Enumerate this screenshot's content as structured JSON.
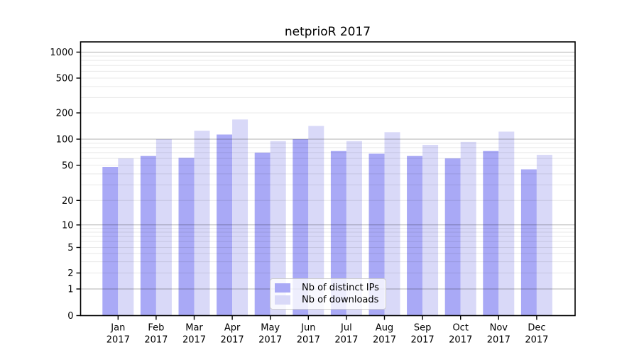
{
  "chart_data": {
    "type": "bar",
    "title": "netprioR 2017",
    "categories": [
      "Jan",
      "Feb",
      "Mar",
      "Apr",
      "May",
      "Jun",
      "Jul",
      "Aug",
      "Sep",
      "Oct",
      "Nov",
      "Dec"
    ],
    "category_year": "2017",
    "series": [
      {
        "name": "Nb of distinct IPs",
        "color": "#a9a9f6",
        "values": [
          48,
          64,
          61,
          113,
          70,
          100,
          73,
          68,
          64,
          60,
          73,
          45
        ]
      },
      {
        "name": "Nb of downloads",
        "color": "#d9d9f8",
        "values": [
          60,
          100,
          125,
          168,
          95,
          142,
          95,
          120,
          86,
          93,
          122,
          66
        ]
      }
    ],
    "y_axis": {
      "scale": "log-like",
      "ticks": [
        0,
        1,
        2,
        5,
        10,
        20,
        50,
        100,
        200,
        500,
        1000
      ],
      "range": [
        0,
        1000
      ]
    },
    "x_axis": {
      "label_lines": "month over year"
    },
    "legend": {
      "position": "lower center"
    },
    "grid": "horizontal, minor light + major dark at powers of 10"
  }
}
